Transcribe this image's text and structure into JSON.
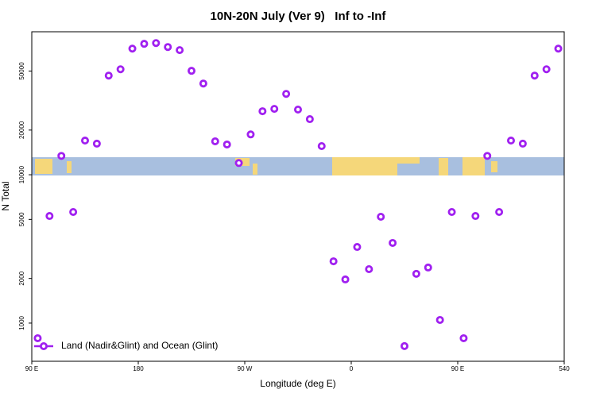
{
  "chart_data": {
    "type": "scatter",
    "title": "10N-20N July (Ver 9)   Inf to -Inf",
    "x_label": "Longitude (deg E)",
    "y_label": "N Total",
    "yscale": "log",
    "xlim": [
      90,
      540
    ],
    "ylim": [
      553,
      92000
    ],
    "xticks": [
      {
        "value": 90,
        "label": "90 E"
      },
      180,
      {
        "value": 270,
        "label": "90 W"
      },
      {
        "value": 360,
        "label": "0"
      },
      {
        "value": 450,
        "label": "90 E"
      },
      540
    ],
    "yticks": [
      1000,
      2000,
      5000,
      10000,
      20000,
      50000
    ],
    "legend": "bottom-left",
    "series": [
      {
        "name": "Land (Nadir&Glint) and Ocean (Glint)",
        "color": "#a020f0",
        "x": [
          95,
          105,
          115,
          125,
          135,
          145,
          155,
          165,
          175,
          185,
          195,
          205,
          215,
          225,
          235,
          245,
          255,
          265,
          275,
          285,
          295,
          305,
          315,
          325,
          335,
          345,
          355,
          365,
          375,
          385,
          395,
          405,
          415,
          425,
          435,
          445,
          455,
          465,
          475,
          485,
          495,
          505,
          515,
          525,
          535
        ],
        "values": [
          791,
          5270,
          13400,
          5610,
          17000,
          16200,
          46600,
          51400,
          70800,
          76300,
          77200,
          72600,
          69200,
          50200,
          41200,
          16800,
          16000,
          12000,
          18700,
          26800,
          27800,
          35100,
          27500,
          23700,
          15600,
          2610,
          1970,
          3260,
          2310,
          5210,
          3470,
          700,
          2150,
          2370,
          1050,
          5610,
          791,
          5270,
          13400,
          5610,
          17000,
          16200,
          46600,
          51400,
          70800
        ]
      }
    ]
  }
}
